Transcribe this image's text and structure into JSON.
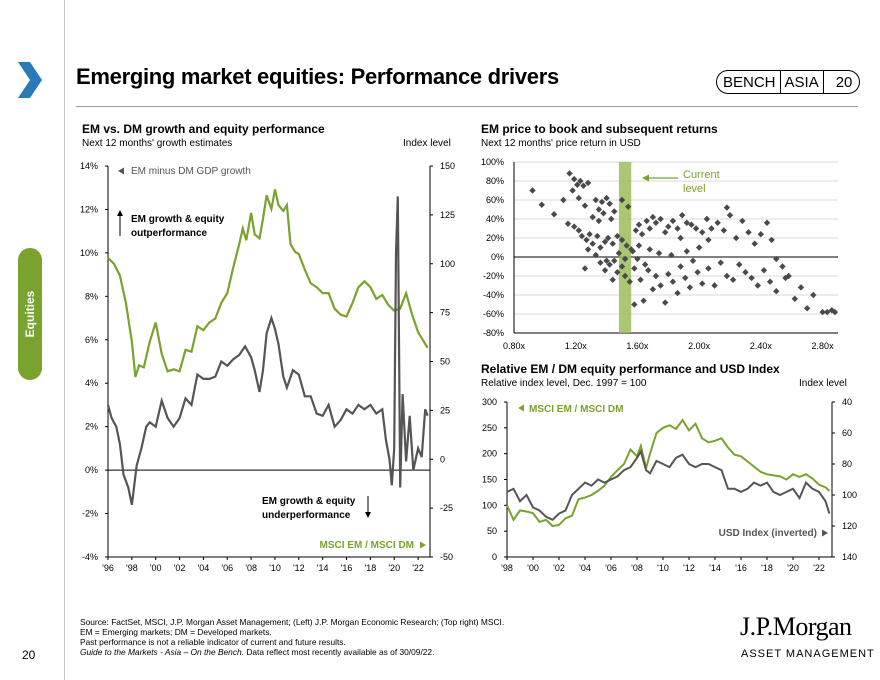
{
  "page": {
    "title": "Emerging market equities: Performance drivers",
    "page_number": "20",
    "side_tab": "Equities",
    "badge": {
      "left": "BENCH",
      "middle": "ASIA",
      "right": "20"
    },
    "colors": {
      "green": "#7aa22e",
      "grey": "#555555",
      "scatter": "#4a4a4a",
      "band": "#9bbd5c"
    }
  },
  "footer": {
    "line1": "Source: FactSet, MSCI, J.P. Morgan Asset Management; (Left) J.P. Morgan Economic Research; (Top right) MSCI.",
    "line2": "EM = Emerging markets; DM = Developed markets.",
    "line3": "Past performance is not a reliable indicator of current and future results.",
    "line4_italic": "Guide to the Markets - Asia – On the Bench.",
    "line4_rest": " Data reflect most recently available as of 30/09/22."
  },
  "logo": {
    "name": "J.P.Morgan",
    "sub": "ASSET MANAGEMENT"
  },
  "chart_data": [
    {
      "type": "line",
      "title": "EM vs. DM growth and equity performance",
      "subtitle": "Next 12 months' growth estimates",
      "right_axis_label": "Index level",
      "x_ticks": [
        "'96",
        "'98",
        "'00",
        "'02",
        "'04",
        "'06",
        "'08",
        "'10",
        "'12",
        "'14",
        "'16",
        "'18",
        "'20",
        "'22"
      ],
      "xlim": [
        1996,
        2023
      ],
      "left_ticks": [
        "14%",
        "12%",
        "10%",
        "8%",
        "6%",
        "4%",
        "2%",
        "0%",
        "-2%",
        "-4%"
      ],
      "ylim_left": [
        -4,
        14
      ],
      "right_ticks": [
        "150",
        "125",
        "100",
        "75",
        "50",
        "25",
        "0",
        "-25",
        "-50"
      ],
      "ylim_right": [
        -50,
        150
      ],
      "annotations": {
        "em_minus_dm": "EM minus DM GDP growth",
        "outperf_1": "EM growth & equity",
        "outperf_2": "outperformance",
        "underperf_1": "EM growth & equity",
        "underperf_2": "underperformance",
        "msci": "MSCI EM / MSCI DM"
      },
      "series": [
        {
          "name": "EM minus DM GDP growth",
          "axis": "left",
          "x": [
            1996,
            1996.3,
            1996.7,
            1997,
            1997.3,
            1997.7,
            1998,
            1998.4,
            1998.8,
            1999.2,
            1999.5,
            2000,
            2000.5,
            2001,
            2001.5,
            2002,
            2002.5,
            2003,
            2003.5,
            2004,
            2004.5,
            2005,
            2005.5,
            2006,
            2006.5,
            2007,
            2007.5,
            2008,
            2008.3,
            2008.7,
            2009,
            2009.3,
            2009.7,
            2010,
            2010.3,
            2010.7,
            2011,
            2011.5,
            2012,
            2012.5,
            2013,
            2013.5,
            2014,
            2014.5,
            2015,
            2015.5,
            2016,
            2016.5,
            2017,
            2017.5,
            2018,
            2018.5,
            2019,
            2019.3,
            2019.6,
            2019.8,
            2020,
            2020.15,
            2020.3,
            2020.5,
            2020.7,
            2021,
            2021.3,
            2021.6,
            2022,
            2022.3,
            2022.6,
            2022.8
          ],
          "values": [
            3.0,
            2.4,
            2.0,
            1.2,
            -0.2,
            -0.8,
            -1.6,
            0.2,
            1.0,
            2.0,
            2.2,
            2.0,
            3.2,
            2.4,
            2.0,
            2.4,
            3.3,
            3.0,
            4.4,
            4.2,
            4.2,
            4.3,
            5.0,
            4.8,
            5.1,
            5.3,
            5.7,
            5.2,
            4.6,
            3.6,
            4.6,
            6.3,
            7.0,
            6.5,
            5.8,
            4.3,
            3.8,
            4.6,
            4.4,
            3.4,
            3.4,
            2.6,
            2.5,
            3.0,
            2.0,
            2.3,
            2.8,
            2.6,
            3.0,
            2.8,
            3.0,
            2.6,
            2.8,
            1.4,
            0.5,
            -0.7,
            1.0,
            10.0,
            12.6,
            -0.8,
            3.5,
            0.4,
            2.5,
            0.0,
            1.0,
            0.6,
            2.8,
            2.5
          ]
        },
        {
          "name": "MSCI EM / MSCI DM",
          "axis": "right",
          "x": [
            1996,
            1996.5,
            1997,
            1997.5,
            1998,
            1998.3,
            1998.6,
            1999,
            1999.5,
            2000,
            2000.5,
            2001,
            2001.5,
            2002,
            2002.5,
            2003,
            2003.5,
            2004,
            2004.5,
            2005,
            2005.5,
            2006,
            2006.5,
            2007,
            2007.3,
            2007.6,
            2008,
            2008.3,
            2008.7,
            2009,
            2009.3,
            2009.7,
            2010,
            2010.3,
            2010.7,
            2011,
            2011.3,
            2011.7,
            2012,
            2012.5,
            2013,
            2013.5,
            2014,
            2014.5,
            2015,
            2015.5,
            2016,
            2016.5,
            2017,
            2017.5,
            2018,
            2018.5,
            2019,
            2019.5,
            2020,
            2020.5,
            2021,
            2021.5,
            2022,
            2022.5,
            2022.8
          ],
          "values": [
            103,
            100,
            94,
            80,
            60,
            42,
            48,
            47,
            60,
            70,
            54,
            45,
            46,
            45,
            56,
            55,
            68,
            66,
            70,
            72,
            80,
            85,
            98,
            110,
            118,
            112,
            126,
            115,
            113,
            123,
            135,
            128,
            138,
            130,
            127,
            130,
            110,
            106,
            105,
            97,
            90,
            88,
            85,
            85,
            77,
            74,
            73,
            80,
            88,
            91,
            88,
            82,
            84,
            79,
            76,
            77,
            85,
            74,
            65,
            60,
            57
          ]
        }
      ]
    },
    {
      "type": "scatter",
      "title": "EM price to book and subsequent returns",
      "subtitle": "Next 12 months' price return in USD",
      "x_ticks": [
        "0.80x",
        "1.20x",
        "1.60x",
        "2.00x",
        "2.40x",
        "2.80x"
      ],
      "xlim": [
        0.8,
        2.9
      ],
      "y_ticks": [
        "100%",
        "80%",
        "60%",
        "40%",
        "20%",
        "0%",
        "-20%",
        "-40%",
        "-60%",
        "-80%"
      ],
      "ylim": [
        -80,
        100
      ],
      "current_band_x": [
        1.48,
        1.56
      ],
      "current_label": "Current level",
      "points": [
        [
          0.92,
          70
        ],
        [
          0.98,
          55
        ],
        [
          1.06,
          45
        ],
        [
          1.12,
          60
        ],
        [
          1.16,
          88
        ],
        [
          1.19,
          82
        ],
        [
          1.21,
          76
        ],
        [
          1.23,
          80
        ],
        [
          1.25,
          75
        ],
        [
          1.28,
          78
        ],
        [
          1.18,
          70
        ],
        [
          1.22,
          62
        ],
        [
          1.26,
          54
        ],
        [
          1.31,
          42
        ],
        [
          1.33,
          60
        ],
        [
          1.35,
          50
        ],
        [
          1.37,
          58
        ],
        [
          1.4,
          62
        ],
        [
          1.42,
          56
        ],
        [
          1.45,
          48
        ],
        [
          1.5,
          60
        ],
        [
          1.54,
          53
        ],
        [
          1.38,
          46
        ],
        [
          1.35,
          38
        ],
        [
          1.43,
          40
        ],
        [
          1.15,
          35
        ],
        [
          1.19,
          32
        ],
        [
          1.22,
          28
        ],
        [
          1.24,
          22
        ],
        [
          1.27,
          18
        ],
        [
          1.29,
          24
        ],
        [
          1.31,
          14
        ],
        [
          1.34,
          22
        ],
        [
          1.36,
          10
        ],
        [
          1.39,
          16
        ],
        [
          1.41,
          20
        ],
        [
          1.44,
          14
        ],
        [
          1.47,
          22
        ],
        [
          1.5,
          18
        ],
        [
          1.53,
          12
        ],
        [
          1.56,
          8
        ],
        [
          1.59,
          28
        ],
        [
          1.61,
          34
        ],
        [
          1.63,
          24
        ],
        [
          1.66,
          38
        ],
        [
          1.68,
          30
        ],
        [
          1.7,
          42
        ],
        [
          1.72,
          36
        ],
        [
          1.75,
          40
        ],
        [
          1.78,
          26
        ],
        [
          1.8,
          32
        ],
        [
          1.83,
          38
        ],
        [
          1.86,
          30
        ],
        [
          1.89,
          44
        ],
        [
          1.92,
          36
        ],
        [
          1.95,
          34
        ],
        [
          1.98,
          30
        ],
        [
          2.02,
          26
        ],
        [
          2.05,
          40
        ],
        [
          2.08,
          30
        ],
        [
          2.12,
          36
        ],
        [
          2.16,
          28
        ],
        [
          2.2,
          44
        ],
        [
          2.24,
          20
        ],
        [
          2.28,
          38
        ],
        [
          2.32,
          26
        ],
        [
          2.36,
          14
        ],
        [
          2.4,
          24
        ],
        [
          2.44,
          36
        ],
        [
          2.47,
          18
        ],
        [
          2.5,
          -2
        ],
        [
          2.18,
          52
        ],
        [
          2.06,
          18
        ],
        [
          1.88,
          20
        ],
        [
          1.28,
          8
        ],
        [
          1.33,
          2
        ],
        [
          1.36,
          -6
        ],
        [
          1.39,
          -14
        ],
        [
          1.42,
          -8
        ],
        [
          1.45,
          -4
        ],
        [
          1.47,
          -16
        ],
        [
          1.5,
          -10
        ],
        [
          1.52,
          -20
        ],
        [
          1.55,
          -26
        ],
        [
          1.58,
          -12
        ],
        [
          1.6,
          -2
        ],
        [
          1.62,
          -24
        ],
        [
          1.65,
          -8
        ],
        [
          1.67,
          -14
        ],
        [
          1.7,
          -34
        ],
        [
          1.72,
          -20
        ],
        [
          1.75,
          -30
        ],
        [
          1.78,
          -48
        ],
        [
          1.8,
          -18
        ],
        [
          1.83,
          -26
        ],
        [
          1.86,
          -38
        ],
        [
          1.88,
          -10
        ],
        [
          1.91,
          -22
        ],
        [
          1.94,
          -32
        ],
        [
          1.96,
          -4
        ],
        [
          1.99,
          -16
        ],
        [
          2.02,
          -28
        ],
        [
          2.06,
          -12
        ],
        [
          2.1,
          -30
        ],
        [
          2.14,
          -6
        ],
        [
          2.18,
          -20
        ],
        [
          2.22,
          -24
        ],
        [
          2.26,
          -8
        ],
        [
          2.3,
          -16
        ],
        [
          2.34,
          -22
        ],
        [
          2.38,
          -30
        ],
        [
          2.42,
          -14
        ],
        [
          2.46,
          -26
        ],
        [
          2.5,
          -36
        ],
        [
          2.54,
          -10
        ],
        [
          2.58,
          -20
        ],
        [
          2.62,
          -44
        ],
        [
          2.66,
          -32
        ],
        [
          2.7,
          -54
        ],
        [
          2.74,
          -40
        ],
        [
          2.8,
          -58
        ],
        [
          2.83,
          -58
        ],
        [
          2.86,
          -56
        ],
        [
          2.88,
          -58
        ],
        [
          1.58,
          -50
        ],
        [
          1.64,
          -46
        ],
        [
          1.44,
          -24
        ],
        [
          1.4,
          -4
        ],
        [
          1.26,
          -12
        ],
        [
          1.48,
          4
        ],
        [
          1.52,
          -2
        ],
        [
          1.57,
          6
        ],
        [
          1.61,
          12
        ],
        [
          1.68,
          8
        ],
        [
          1.74,
          4
        ],
        [
          1.82,
          2
        ],
        [
          1.92,
          6
        ],
        [
          2.0,
          10
        ],
        [
          2.56,
          -22
        ]
      ]
    },
    {
      "type": "line",
      "title": "Relative EM / DM equity performance and USD Index",
      "subtitle": "Relative index level, Dec. 1997 = 100",
      "right_axis_label": "Index level",
      "x_ticks": [
        "'98",
        "'00",
        "'02",
        "'04",
        "'06",
        "'08",
        "'10",
        "'12",
        "'14",
        "'16",
        "'18",
        "'20",
        "'22"
      ],
      "xlim": [
        1998,
        2023
      ],
      "left_ticks": [
        "300",
        "250",
        "200",
        "150",
        "100",
        "50",
        "0"
      ],
      "ylim_left": [
        0,
        300
      ],
      "right_ticks": [
        "40",
        "60",
        "80",
        "100",
        "120",
        "140"
      ],
      "ylim_right_inverted": [
        140,
        40
      ],
      "annotations": {
        "msci": "MSCI EM / MSCI DM",
        "usd": "USD Index (inverted)"
      },
      "series": [
        {
          "name": "MSCI EM / MSCI DM",
          "axis": "left",
          "x": [
            1998,
            1998.5,
            1999,
            1999.5,
            2000,
            2000.5,
            2001,
            2001.5,
            2002,
            2002.5,
            2003,
            2003.5,
            2004,
            2004.5,
            2005,
            2005.5,
            2006,
            2006.5,
            2007,
            2007.5,
            2008,
            2008.3,
            2008.7,
            2009,
            2009.5,
            2010,
            2010.5,
            2011,
            2011.5,
            2012,
            2012.5,
            2013,
            2013.5,
            2014,
            2014.5,
            2015,
            2015.5,
            2016,
            2016.5,
            2017,
            2017.5,
            2018,
            2018.5,
            2019,
            2019.5,
            2020,
            2020.5,
            2021,
            2021.5,
            2022,
            2022.5,
            2022.8
          ],
          "values": [
            100,
            72,
            90,
            88,
            85,
            68,
            72,
            60,
            62,
            75,
            80,
            112,
            115,
            120,
            128,
            138,
            155,
            168,
            180,
            208,
            195,
            215,
            172,
            200,
            240,
            250,
            255,
            248,
            265,
            245,
            258,
            230,
            222,
            225,
            230,
            212,
            198,
            195,
            185,
            175,
            165,
            160,
            158,
            156,
            150,
            160,
            155,
            160,
            152,
            140,
            135,
            128
          ]
        },
        {
          "name": "USD Index (inverted)",
          "axis": "right",
          "x": [
            1998,
            1998.5,
            1999,
            1999.5,
            2000,
            2000.5,
            2001,
            2001.5,
            2002,
            2002.5,
            2003,
            2003.5,
            2004,
            2004.5,
            2005,
            2005.5,
            2006,
            2006.5,
            2007,
            2007.5,
            2008,
            2008.3,
            2008.7,
            2009,
            2009.5,
            2010,
            2010.5,
            2011,
            2011.5,
            2012,
            2012.5,
            2013,
            2013.5,
            2014,
            2014.5,
            2015,
            2015.5,
            2016,
            2016.5,
            2017,
            2017.5,
            2018,
            2018.5,
            2019,
            2019.5,
            2020,
            2020.5,
            2021,
            2021.5,
            2022,
            2022.5,
            2022.8
          ],
          "values": [
            98,
            96,
            104,
            100,
            108,
            110,
            114,
            116,
            112,
            110,
            100,
            96,
            92,
            94,
            90,
            92,
            90,
            88,
            84,
            82,
            76,
            72,
            84,
            86,
            78,
            80,
            82,
            76,
            74,
            80,
            82,
            80,
            80,
            82,
            84,
            96,
            96,
            98,
            96,
            92,
            94,
            92,
            98,
            100,
            98,
            96,
            102,
            92,
            96,
            98,
            104,
            112
          ]
        }
      ]
    }
  ]
}
